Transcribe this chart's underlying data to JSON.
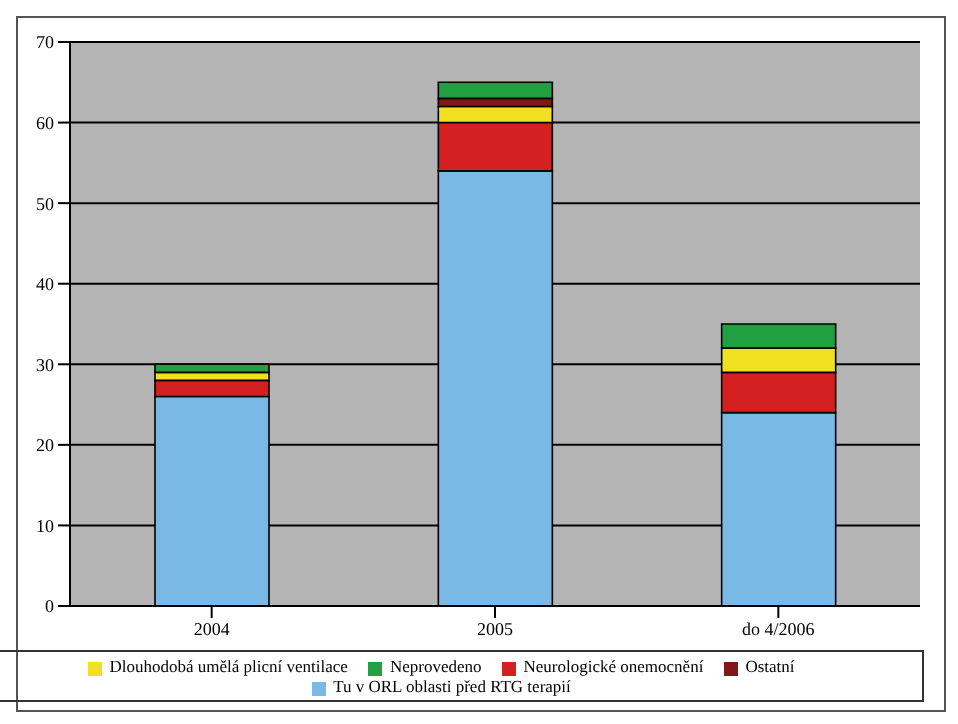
{
  "chart_data": {
    "type": "bar",
    "stacked": true,
    "categories": [
      "2004",
      "2005",
      "do 4/2006"
    ],
    "series": [
      {
        "name": "Tu v ORL oblasti před RTG terapií",
        "color": "#7ab8e6",
        "values": [
          26,
          54,
          24
        ]
      },
      {
        "name": "Neurologické onemocnění",
        "color": "#d42020",
        "values": [
          2,
          6,
          5
        ]
      },
      {
        "name": "Dlouhodobá umělá plicní ventilace",
        "color": "#f0e020",
        "values": [
          1,
          2,
          3
        ]
      },
      {
        "name": "Ostatní",
        "color": "#801818",
        "values": [
          0,
          1,
          0
        ]
      },
      {
        "name": "Neprovedeno",
        "color": "#20a040",
        "values": [
          1,
          2,
          3
        ]
      }
    ],
    "ylim": [
      0,
      70
    ],
    "yticks": [
      0,
      10,
      20,
      30,
      40,
      50,
      60,
      70
    ],
    "grid": "y",
    "legend": "bottom"
  }
}
